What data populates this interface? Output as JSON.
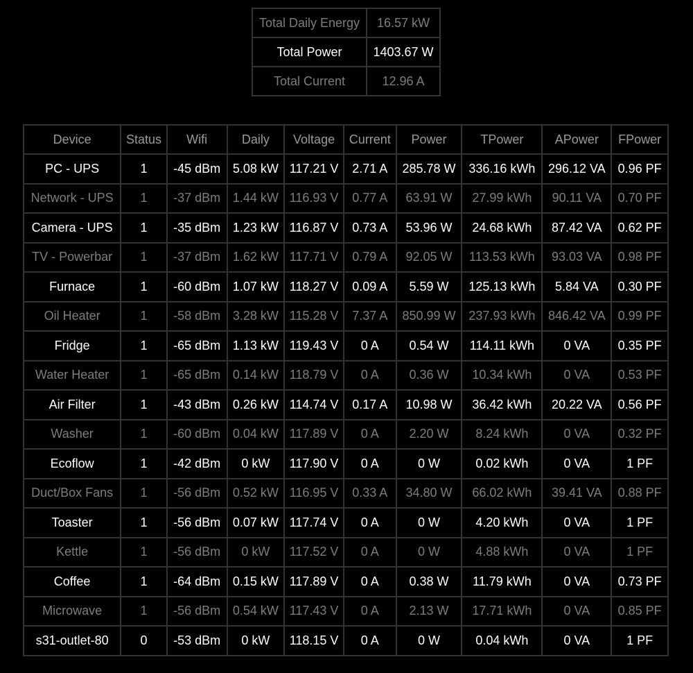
{
  "summary": [
    {
      "label": "Total Daily Energy",
      "value": "16.57 kW",
      "style": "dim"
    },
    {
      "label": "Total Power",
      "value": "1403.67 W",
      "style": "bright"
    },
    {
      "label": "Total Current",
      "value": "12.96 A",
      "style": "dim"
    }
  ],
  "columns": [
    "Device",
    "Status",
    "Wifi",
    "Daily",
    "Voltage",
    "Current",
    "Power",
    "TPower",
    "APower",
    "FPower"
  ],
  "devices": [
    {
      "name": "PC - UPS",
      "status": "1",
      "wifi": "-45 dBm",
      "daily": "5.08 kW",
      "voltage": "117.21 V",
      "current": "2.71 A",
      "power": "285.78 W",
      "tpower": "336.16 kWh",
      "apower": "296.12 VA",
      "fpower": "0.96 PF",
      "style": "bright"
    },
    {
      "name": "Network - UPS",
      "status": "1",
      "wifi": "-37 dBm",
      "daily": "1.44 kW",
      "voltage": "116.93 V",
      "current": "0.77 A",
      "power": "63.91 W",
      "tpower": "27.99 kWh",
      "apower": "90.11 VA",
      "fpower": "0.70 PF",
      "style": "dim"
    },
    {
      "name": "Camera - UPS",
      "status": "1",
      "wifi": "-35 dBm",
      "daily": "1.23 kW",
      "voltage": "116.87 V",
      "current": "0.73 A",
      "power": "53.96 W",
      "tpower": "24.68 kWh",
      "apower": "87.42 VA",
      "fpower": "0.62 PF",
      "style": "bright"
    },
    {
      "name": "TV - Powerbar",
      "status": "1",
      "wifi": "-37 dBm",
      "daily": "1.62 kW",
      "voltage": "117.71 V",
      "current": "0.79 A",
      "power": "92.05 W",
      "tpower": "113.53 kWh",
      "apower": "93.03 VA",
      "fpower": "0.98 PF",
      "style": "dim"
    },
    {
      "name": "Furnace",
      "status": "1",
      "wifi": "-60 dBm",
      "daily": "1.07 kW",
      "voltage": "118.27 V",
      "current": "0.09 A",
      "power": "5.59 W",
      "tpower": "125.13 kWh",
      "apower": "5.84 VA",
      "fpower": "0.30 PF",
      "style": "bright"
    },
    {
      "name": "Oil Heater",
      "status": "1",
      "wifi": "-58 dBm",
      "daily": "3.28 kW",
      "voltage": "115.28 V",
      "current": "7.37 A",
      "power": "850.99 W",
      "tpower": "237.93 kWh",
      "apower": "846.42 VA",
      "fpower": "0.99 PF",
      "style": "dim"
    },
    {
      "name": "Fridge",
      "status": "1",
      "wifi": "-65 dBm",
      "daily": "1.13 kW",
      "voltage": "119.43 V",
      "current": "0 A",
      "power": "0.54 W",
      "tpower": "114.11 kWh",
      "apower": "0 VA",
      "fpower": "0.35 PF",
      "style": "bright"
    },
    {
      "name": "Water Heater",
      "status": "1",
      "wifi": "-65 dBm",
      "daily": "0.14 kW",
      "voltage": "118.79 V",
      "current": "0 A",
      "power": "0.36 W",
      "tpower": "10.34 kWh",
      "apower": "0 VA",
      "fpower": "0.53 PF",
      "style": "dim"
    },
    {
      "name": "Air Filter",
      "status": "1",
      "wifi": "-43 dBm",
      "daily": "0.26 kW",
      "voltage": "114.74 V",
      "current": "0.17 A",
      "power": "10.98 W",
      "tpower": "36.42 kWh",
      "apower": "20.22 VA",
      "fpower": "0.56 PF",
      "style": "bright"
    },
    {
      "name": "Washer",
      "status": "1",
      "wifi": "-60 dBm",
      "daily": "0.04 kW",
      "voltage": "117.89 V",
      "current": "0 A",
      "power": "2.20 W",
      "tpower": "8.24 kWh",
      "apower": "0 VA",
      "fpower": "0.32 PF",
      "style": "dim"
    },
    {
      "name": "Ecoflow",
      "status": "1",
      "wifi": "-42 dBm",
      "daily": "0 kW",
      "voltage": "117.90 V",
      "current": "0 A",
      "power": "0 W",
      "tpower": "0.02 kWh",
      "apower": "0 VA",
      "fpower": "1 PF",
      "style": "bright"
    },
    {
      "name": "Duct/Box Fans",
      "status": "1",
      "wifi": "-56 dBm",
      "daily": "0.52 kW",
      "voltage": "116.95 V",
      "current": "0.33 A",
      "power": "34.80 W",
      "tpower": "66.02 kWh",
      "apower": "39.41 VA",
      "fpower": "0.88 PF",
      "style": "dim"
    },
    {
      "name": "Toaster",
      "status": "1",
      "wifi": "-56 dBm",
      "daily": "0.07 kW",
      "voltage": "117.74 V",
      "current": "0 A",
      "power": "0 W",
      "tpower": "4.20 kWh",
      "apower": "0 VA",
      "fpower": "1 PF",
      "style": "bright"
    },
    {
      "name": "Kettle",
      "status": "1",
      "wifi": "-56 dBm",
      "daily": "0 kW",
      "voltage": "117.52 V",
      "current": "0 A",
      "power": "0 W",
      "tpower": "4.88 kWh",
      "apower": "0 VA",
      "fpower": "1 PF",
      "style": "dim"
    },
    {
      "name": "Coffee",
      "status": "1",
      "wifi": "-64 dBm",
      "daily": "0.15 kW",
      "voltage": "117.89 V",
      "current": "0 A",
      "power": "0.38 W",
      "tpower": "11.79 kWh",
      "apower": "0 VA",
      "fpower": "0.73 PF",
      "style": "bright"
    },
    {
      "name": "Microwave",
      "status": "1",
      "wifi": "-56 dBm",
      "daily": "0.54 kW",
      "voltage": "117.43 V",
      "current": "0 A",
      "power": "2.13 W",
      "tpower": "17.71 kWh",
      "apower": "0 VA",
      "fpower": "0.85 PF",
      "style": "dim"
    },
    {
      "name": "s31-outlet-80",
      "status": "0",
      "wifi": "-53 dBm",
      "daily": "0 kW",
      "voltage": "118.15 V",
      "current": "0 A",
      "power": "0 W",
      "tpower": "0.04 kWh",
      "apower": "0 VA",
      "fpower": "1 PF",
      "style": "bright"
    }
  ]
}
